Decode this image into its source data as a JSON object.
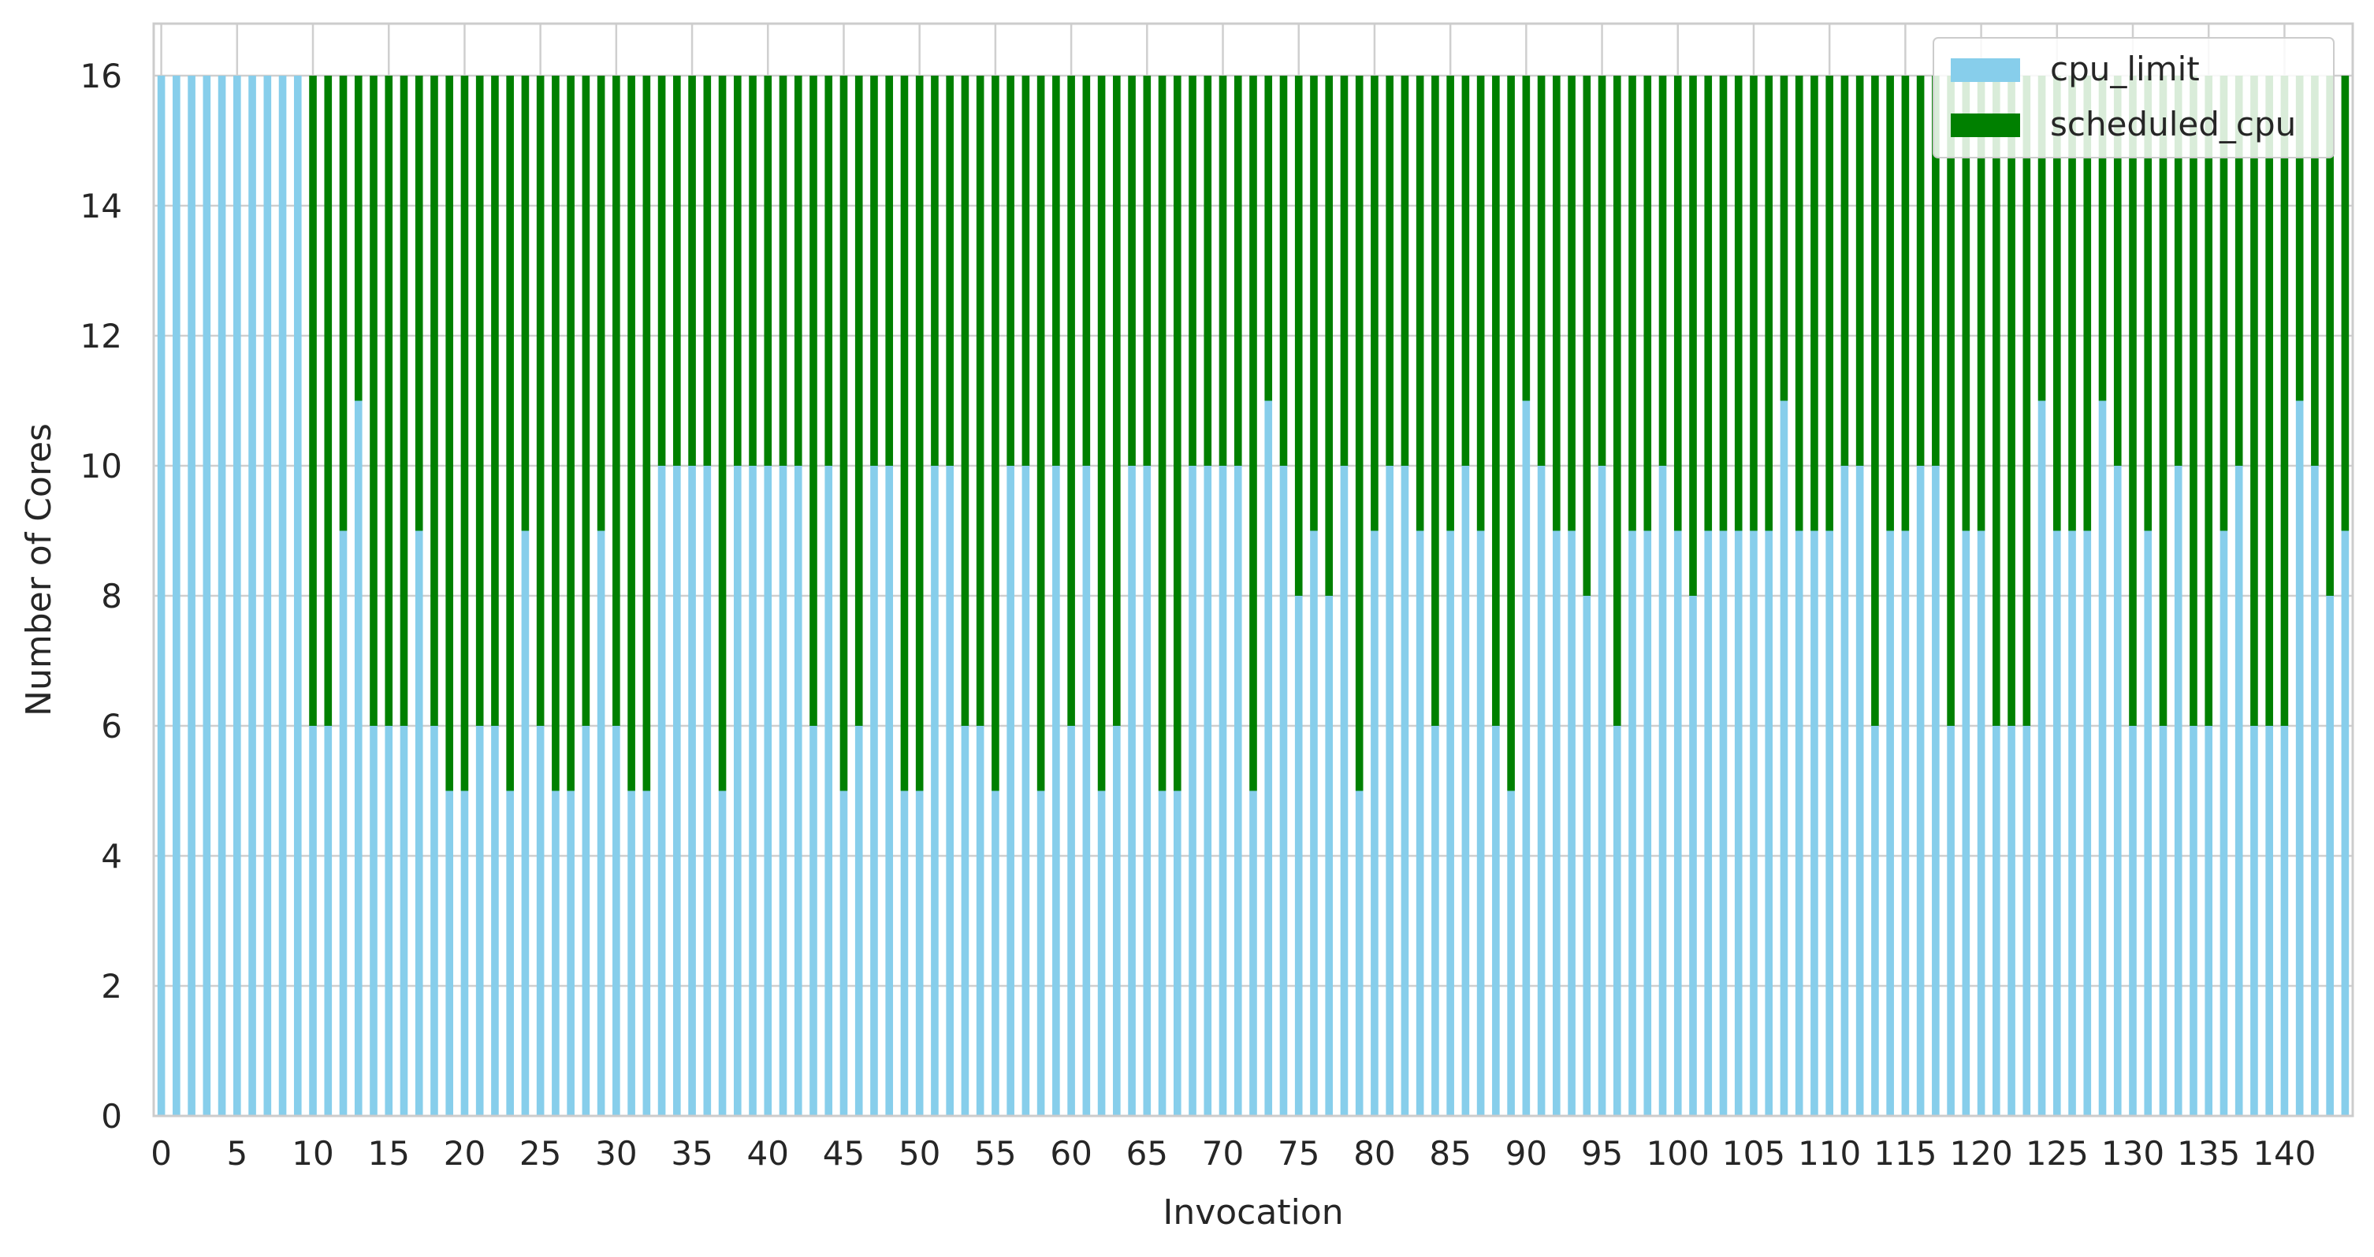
{
  "chart_data": {
    "type": "bar",
    "stacked": true,
    "xlabel": "Invocation",
    "ylabel": "Number of Cores",
    "ylim": [
      0,
      16.8
    ],
    "yticks": [
      0,
      2,
      4,
      6,
      8,
      10,
      12,
      14,
      16
    ],
    "xtick_step": 5,
    "grid": true,
    "legend": {
      "position": "top-right",
      "entries": [
        "cpu_limit",
        "scheduled_cpu"
      ]
    },
    "colors": {
      "cpu_limit": "#87ceeb",
      "scheduled_cpu": "#008000",
      "grid": "#cfcfcf",
      "frame": "#cccccc"
    },
    "x": [
      0,
      1,
      2,
      3,
      4,
      5,
      6,
      7,
      8,
      9,
      10,
      11,
      12,
      13,
      14,
      15,
      16,
      17,
      18,
      19,
      20,
      21,
      22,
      23,
      24,
      25,
      26,
      27,
      28,
      29,
      30,
      31,
      32,
      33,
      34,
      35,
      36,
      37,
      38,
      39,
      40,
      41,
      42,
      43,
      44,
      45,
      46,
      47,
      48,
      49,
      50,
      51,
      52,
      53,
      54,
      55,
      56,
      57,
      58,
      59,
      60,
      61,
      62,
      63,
      64,
      65,
      66,
      67,
      68,
      69,
      70,
      71,
      72,
      73,
      74,
      75,
      76,
      77,
      78,
      79,
      80,
      81,
      82,
      83,
      84,
      85,
      86,
      87,
      88,
      89,
      90,
      91,
      92,
      93,
      94,
      95,
      96,
      97,
      98,
      99,
      100,
      101,
      102,
      103,
      104,
      105,
      106,
      107,
      108,
      109,
      110,
      111,
      112,
      113,
      114,
      115,
      116,
      117,
      118,
      119,
      120,
      121,
      122,
      123,
      124,
      125,
      126,
      127,
      128,
      129,
      130,
      131,
      132,
      133,
      134,
      135,
      136,
      137,
      138,
      139,
      140,
      141,
      142,
      143,
      144
    ],
    "series": [
      {
        "name": "cpu_limit",
        "values": [
          16,
          16,
          16,
          16,
          16,
          16,
          16,
          16,
          16,
          16,
          6,
          6,
          9,
          11,
          6,
          6,
          6,
          9,
          6,
          5,
          5,
          6,
          6,
          5,
          9,
          6,
          5,
          5,
          6,
          9,
          6,
          5,
          5,
          10,
          10,
          10,
          10,
          5,
          10,
          10,
          10,
          10,
          10,
          6,
          10,
          5,
          6,
          10,
          10,
          5,
          5,
          10,
          10,
          6,
          6,
          5,
          10,
          10,
          5,
          10,
          6,
          10,
          5,
          6,
          10,
          10,
          5,
          5,
          10,
          10,
          10,
          10,
          5,
          11,
          10,
          8,
          9,
          8,
          10,
          5,
          9,
          10,
          10,
          9,
          6,
          9,
          10,
          9,
          6,
          5,
          11,
          10,
          9,
          9,
          8,
          10,
          6,
          9,
          9,
          10,
          9,
          8,
          9,
          9,
          9,
          9,
          9,
          11,
          9,
          9,
          9,
          10,
          10,
          6,
          9,
          9,
          10,
          10,
          6,
          9,
          9,
          6,
          6,
          6,
          11,
          9,
          9,
          9,
          11,
          10,
          6,
          9,
          6,
          10,
          6,
          6,
          9,
          10,
          6,
          6,
          6,
          11,
          10,
          8,
          9
        ]
      },
      {
        "name": "scheduled_cpu",
        "values": [
          0,
          0,
          0,
          0,
          0,
          0,
          0,
          0,
          0,
          0,
          10,
          10,
          7,
          5,
          10,
          10,
          10,
          7,
          10,
          11,
          11,
          10,
          10,
          11,
          7,
          10,
          11,
          11,
          10,
          7,
          10,
          11,
          11,
          6,
          6,
          6,
          6,
          11,
          6,
          6,
          6,
          6,
          6,
          10,
          6,
          11,
          10,
          6,
          6,
          11,
          11,
          6,
          6,
          10,
          10,
          11,
          6,
          6,
          11,
          6,
          10,
          6,
          11,
          10,
          6,
          6,
          11,
          11,
          6,
          6,
          6,
          6,
          11,
          5,
          6,
          8,
          7,
          8,
          6,
          11,
          7,
          6,
          6,
          7,
          10,
          7,
          6,
          7,
          10,
          11,
          5,
          6,
          7,
          7,
          8,
          6,
          10,
          7,
          7,
          6,
          7,
          8,
          7,
          7,
          7,
          7,
          7,
          5,
          7,
          7,
          7,
          6,
          6,
          10,
          7,
          7,
          6,
          6,
          10,
          7,
          7,
          10,
          10,
          10,
          5,
          7,
          7,
          7,
          5,
          6,
          10,
          7,
          10,
          6,
          10,
          10,
          7,
          6,
          10,
          10,
          10,
          5,
          6,
          8,
          7
        ]
      }
    ]
  }
}
